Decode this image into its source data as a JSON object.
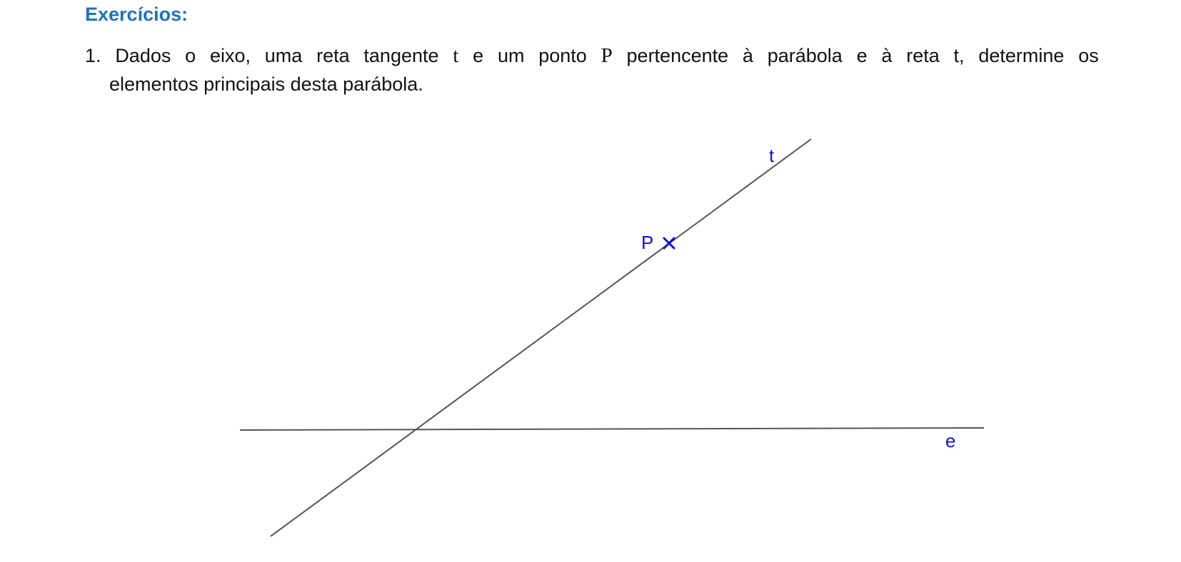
{
  "heading": "Exercícios:",
  "exercise": {
    "number": "1.",
    "line1_words": [
      "Dados",
      "o",
      "eixo,",
      "uma",
      "reta",
      "tangente",
      "t",
      "e",
      "um",
      "ponto",
      "P",
      "pertencente",
      "à",
      "parábola",
      "e",
      "à",
      "reta",
      "t,",
      "determine",
      "os"
    ],
    "line2": "elementos principais desta parábola."
  },
  "figure": {
    "line_t_label": "t",
    "line_e_label": "e",
    "point_P_label": "P",
    "line_color": "#555555",
    "label_color": "#1010e0"
  }
}
